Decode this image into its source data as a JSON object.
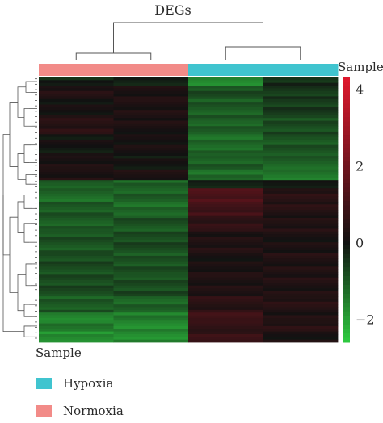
{
  "chart_data": {
    "type": "heatmap",
    "title": "DEGs",
    "annotation_label": "Sample",
    "colorbar": {
      "ticks": [
        "4",
        "2",
        "0",
        "−2"
      ],
      "tick_values": [
        4,
        2,
        0,
        -2
      ],
      "range": [
        -2.6,
        4.3
      ],
      "colors": {
        "low": "#2ecc40",
        "mid": "#111111",
        "high": "#e0182d"
      }
    },
    "columns": [
      {
        "group": "Normoxia"
      },
      {
        "group": "Normoxia"
      },
      {
        "group": "Hypoxia"
      },
      {
        "group": "Hypoxia"
      }
    ],
    "groups": [
      {
        "name": "Hypoxia",
        "color": "#40c4cf"
      },
      {
        "name": "Normoxia",
        "color": "#f28b88"
      }
    ],
    "row_blocks": [
      {
        "rows": 3,
        "values": [
          -0.2,
          -0.1,
          -1.8,
          -0.4
        ]
      },
      {
        "rows": 5,
        "values": [
          0.3,
          0.2,
          -0.8,
          -0.5
        ]
      },
      {
        "rows": 7,
        "values": [
          0.1,
          0.3,
          -1.0,
          -0.6
        ]
      },
      {
        "rows": 6,
        "values": [
          0.5,
          0.2,
          -1.1,
          -0.8
        ]
      },
      {
        "rows": 8,
        "values": [
          0.0,
          0.1,
          -1.2,
          -0.9
        ]
      },
      {
        "rows": 5,
        "values": [
          0.2,
          0.0,
          -1.0,
          -1.1
        ]
      },
      {
        "rows": 4,
        "values": [
          0.3,
          0.2,
          -1.3,
          -1.4
        ]
      },
      {
        "rows": 3,
        "values": [
          -1.0,
          -1.1,
          -0.1,
          -0.2
        ]
      },
      {
        "rows": 5,
        "values": [
          -1.2,
          -1.1,
          1.2,
          0.5
        ]
      },
      {
        "rows": 5,
        "values": [
          -1.0,
          -1.2,
          1.0,
          0.4
        ]
      },
      {
        "rows": 6,
        "values": [
          -1.0,
          -0.9,
          0.6,
          0.3
        ]
      },
      {
        "rows": 8,
        "values": [
          -0.9,
          -0.8,
          0.3,
          0.2
        ]
      },
      {
        "rows": 8,
        "values": [
          -0.8,
          -0.9,
          0.2,
          0.3
        ]
      },
      {
        "rows": 8,
        "values": [
          -0.8,
          -0.8,
          0.3,
          0.3
        ]
      },
      {
        "rows": 6,
        "values": [
          -1.0,
          -1.1,
          0.5,
          0.4
        ]
      },
      {
        "rows": 3,
        "values": [
          -1.6,
          -1.5,
          1.0,
          0.3
        ]
      },
      {
        "rows": 4,
        "values": [
          -1.4,
          -1.6,
          0.6,
          0.4
        ]
      },
      {
        "rows": 4,
        "values": [
          -1.8,
          -1.7,
          0.8,
          0.2
        ]
      }
    ]
  }
}
